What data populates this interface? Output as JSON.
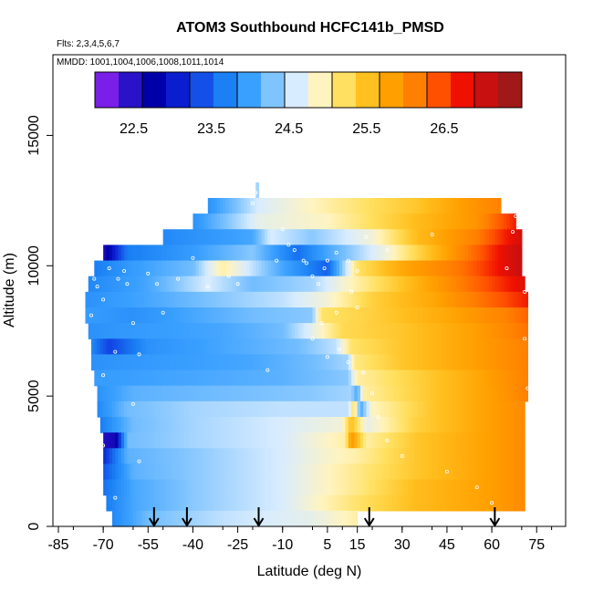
{
  "chart_data": {
    "type": "heatmap",
    "title": "ATOM3 Southbound HCFC141b_PMSD",
    "flights_label": "Flts: 2,3,4,5,6,7",
    "dates_label": "MMDD: 1001,1004,1006,1008,1011,1014",
    "xlabel": "Latitude (deg N)",
    "ylabel": "Altitude (m)",
    "xlim": [
      -85,
      85
    ],
    "ylim": [
      0,
      17500
    ],
    "x_ticks": [
      -85,
      -70,
      -55,
      -40,
      -25,
      -10,
      5,
      15,
      30,
      45,
      60,
      75
    ],
    "x_tick_labels": [
      "-85",
      "-70",
      "-55",
      "-40",
      "-25",
      "-10",
      "5",
      "15",
      "30",
      "45",
      "60",
      "75"
    ],
    "y_ticks": [
      0,
      5000,
      10000,
      15000
    ],
    "y_tick_labels": [
      "0",
      "5000",
      "10000",
      "15000"
    ],
    "colorbar": {
      "range": [
        22,
        27.5
      ],
      "tick_values": [
        22.5,
        23.5,
        24.5,
        25.5,
        26.5
      ],
      "tick_labels": [
        "22.5",
        "23.5",
        "24.5",
        "25.5",
        "26.5"
      ],
      "colors": [
        "#7a1fe8",
        "#2a12c8",
        "#0000a8",
        "#0a1ed0",
        "#1450e8",
        "#1a80f4",
        "#3aa0ff",
        "#80c4ff",
        "#d8ecff",
        "#fff4c0",
        "#ffe060",
        "#ffc020",
        "#ffa000",
        "#ff8000",
        "#ff5000",
        "#f01000",
        "#c81010",
        "#a01818"
      ]
    },
    "latitude_markers": [
      -53,
      -42,
      -18,
      19,
      61
    ],
    "altitude_bins": [
      {
        "alt": 12900,
        "lat_min": -19,
        "lat_max": -18,
        "start_lat": -19,
        "start_value": 24.3,
        "nodes": [
          [
            -18,
            24.5
          ]
        ]
      },
      {
        "alt": 12300,
        "lat_min": -35,
        "lat_max": 63,
        "start_lat": -35,
        "start_value": 23.8,
        "nodes": [
          [
            -18,
            24.6
          ],
          [
            5,
            25.0
          ],
          [
            35,
            25.5
          ],
          [
            50,
            25.9
          ],
          [
            63,
            26.2
          ]
        ]
      },
      {
        "alt": 11700,
        "lat_min": -40,
        "lat_max": 68,
        "start_lat": -40,
        "start_value": 23.8,
        "nodes": [
          [
            -18,
            24.7
          ],
          [
            5,
            24.9
          ],
          [
            35,
            25.6
          ],
          [
            55,
            26.0
          ],
          [
            65,
            26.6
          ],
          [
            68,
            26.8
          ]
        ]
      },
      {
        "alt": 11100,
        "lat_min": -50,
        "lat_max": 70,
        "start_lat": -50,
        "start_value": 23.7,
        "nodes": [
          [
            -20,
            24.0
          ],
          [
            -14,
            24.6
          ],
          [
            0,
            24.3
          ],
          [
            20,
            24.8
          ],
          [
            35,
            25.6
          ],
          [
            55,
            26.2
          ],
          [
            65,
            26.8
          ],
          [
            70,
            27.1
          ]
        ]
      },
      {
        "alt": 10500,
        "lat_min": -70,
        "lat_max": 70,
        "start_lat": -70,
        "start_value": 22.4,
        "nodes": [
          [
            -62,
            23.6
          ],
          [
            -40,
            23.9
          ],
          [
            -20,
            24.3
          ],
          [
            -5,
            23.5
          ],
          [
            5,
            24.0
          ],
          [
            25,
            24.8
          ],
          [
            40,
            25.6
          ],
          [
            55,
            26.4
          ],
          [
            65,
            27.0
          ],
          [
            70,
            27.2
          ]
        ]
      },
      {
        "alt": 9900,
        "lat_min": -73,
        "lat_max": 70,
        "start_lat": -73,
        "start_value": 23.6,
        "nodes": [
          [
            -60,
            23.9
          ],
          [
            -40,
            24.2
          ],
          [
            -30,
            25.0
          ],
          [
            -20,
            24.5
          ],
          [
            -10,
            24.0
          ],
          [
            5,
            23.4
          ],
          [
            15,
            25.2
          ],
          [
            30,
            25.8
          ],
          [
            50,
            26.3
          ],
          [
            70,
            27.2
          ]
        ]
      },
      {
        "alt": 9300,
        "lat_min": -75,
        "lat_max": 71,
        "start_lat": -75,
        "start_value": 23.7,
        "nodes": [
          [
            -55,
            24.0
          ],
          [
            -35,
            24.6
          ],
          [
            -20,
            24.2
          ],
          [
            0,
            24.4
          ],
          [
            15,
            25.0
          ],
          [
            35,
            25.7
          ],
          [
            55,
            26.4
          ],
          [
            71,
            27.0
          ]
        ]
      },
      {
        "alt": 8700,
        "lat_min": -76,
        "lat_max": 72,
        "start_lat": -76,
        "start_value": 23.8,
        "nodes": [
          [
            -55,
            24.0
          ],
          [
            -30,
            24.3
          ],
          [
            -10,
            24.5
          ],
          [
            5,
            24.8
          ],
          [
            20,
            25.4
          ],
          [
            40,
            25.8
          ],
          [
            60,
            26.4
          ],
          [
            72,
            26.8
          ]
        ]
      },
      {
        "alt": 8100,
        "lat_min": -76,
        "lat_max": 72,
        "start_lat": -76,
        "start_value": 23.9,
        "nodes": [
          [
            -60,
            23.8
          ],
          [
            -40,
            24.0
          ],
          [
            -20,
            24.2
          ],
          [
            0,
            24.3
          ],
          [
            3,
            25.2
          ],
          [
            20,
            25.4
          ],
          [
            45,
            25.8
          ],
          [
            65,
            26.2
          ],
          [
            72,
            26.4
          ]
        ]
      },
      {
        "alt": 7500,
        "lat_min": -75,
        "lat_max": 72,
        "start_lat": -75,
        "start_value": 23.8,
        "nodes": [
          [
            -55,
            23.9
          ],
          [
            -30,
            24.0
          ],
          [
            -10,
            24.2
          ],
          [
            0,
            24.7
          ],
          [
            10,
            25.3
          ],
          [
            30,
            25.5
          ],
          [
            55,
            25.9
          ],
          [
            72,
            26.3
          ]
        ]
      },
      {
        "alt": 6900,
        "lat_min": -74,
        "lat_max": 72,
        "start_lat": -74,
        "start_value": 23.7,
        "nodes": [
          [
            -68,
            23.2
          ],
          [
            -55,
            23.8
          ],
          [
            -30,
            24.0
          ],
          [
            -5,
            24.2
          ],
          [
            8,
            24.5
          ],
          [
            13,
            25.2
          ],
          [
            30,
            25.5
          ],
          [
            55,
            25.9
          ],
          [
            72,
            26.2
          ]
        ]
      },
      {
        "alt": 6300,
        "lat_min": -74,
        "lat_max": 72,
        "start_lat": -74,
        "start_value": 23.8,
        "nodes": [
          [
            -50,
            23.9
          ],
          [
            -20,
            24.0
          ],
          [
            0,
            24.2
          ],
          [
            12,
            24.4
          ],
          [
            14,
            25.1
          ],
          [
            30,
            25.5
          ],
          [
            55,
            25.9
          ],
          [
            72,
            26.2
          ]
        ]
      },
      {
        "alt": 5700,
        "lat_min": -73,
        "lat_max": 72,
        "start_lat": -73,
        "start_value": 23.9,
        "nodes": [
          [
            -40,
            24.0
          ],
          [
            -10,
            24.1
          ],
          [
            12,
            24.3
          ],
          [
            15,
            25.0
          ],
          [
            35,
            25.4
          ],
          [
            55,
            25.8
          ],
          [
            72,
            26.2
          ]
        ]
      },
      {
        "alt": 5100,
        "lat_min": -72,
        "lat_max": 72,
        "start_lat": -72,
        "start_value": 23.8,
        "nodes": [
          [
            -60,
            24.1
          ],
          [
            -30,
            24.2
          ],
          [
            0,
            24.3
          ],
          [
            13,
            24.4
          ],
          [
            15,
            24.0
          ],
          [
            17,
            25.0
          ],
          [
            40,
            25.5
          ],
          [
            60,
            25.9
          ],
          [
            72,
            26.2
          ]
        ]
      },
      {
        "alt": 4500,
        "lat_min": -72,
        "lat_max": 71,
        "start_lat": -72,
        "start_value": 23.7,
        "nodes": [
          [
            -62,
            24.2
          ],
          [
            -40,
            24.4
          ],
          [
            -10,
            24.5
          ],
          [
            12,
            24.5
          ],
          [
            14,
            25.3
          ],
          [
            16,
            24.0
          ],
          [
            20,
            24.9
          ],
          [
            40,
            25.5
          ],
          [
            60,
            25.9
          ],
          [
            71,
            26.1
          ]
        ]
      },
      {
        "alt": 3900,
        "lat_min": -71,
        "lat_max": 71,
        "start_lat": -71,
        "start_value": 23.6,
        "nodes": [
          [
            -60,
            24.2
          ],
          [
            -40,
            24.4
          ],
          [
            -10,
            24.6
          ],
          [
            10,
            24.8
          ],
          [
            13,
            25.6
          ],
          [
            18,
            24.7
          ],
          [
            35,
            25.4
          ],
          [
            60,
            25.9
          ],
          [
            71,
            26.1
          ]
        ]
      },
      {
        "alt": 3300,
        "lat_min": -70,
        "lat_max": 71,
        "start_lat": -70,
        "start_value": 22.4,
        "nodes": [
          [
            -66,
            22.5
          ],
          [
            -62,
            24.2
          ],
          [
            -40,
            24.4
          ],
          [
            -10,
            24.6
          ],
          [
            11,
            25.0
          ],
          [
            13,
            26.0
          ],
          [
            18,
            25.0
          ],
          [
            35,
            25.5
          ],
          [
            60,
            25.9
          ],
          [
            71,
            26.1
          ]
        ]
      },
      {
        "alt": 2700,
        "lat_min": -70,
        "lat_max": 71,
        "start_lat": -70,
        "start_value": 23.0,
        "nodes": [
          [
            -62,
            24.1
          ],
          [
            -40,
            24.3
          ],
          [
            -10,
            24.6
          ],
          [
            15,
            25.0
          ],
          [
            35,
            25.5
          ],
          [
            60,
            25.9
          ],
          [
            71,
            26.1
          ]
        ]
      },
      {
        "alt": 2100,
        "lat_min": -70,
        "lat_max": 71,
        "start_lat": -70,
        "start_value": 23.3,
        "nodes": [
          [
            -60,
            24.1
          ],
          [
            -40,
            24.3
          ],
          [
            -10,
            24.6
          ],
          [
            15,
            25.1
          ],
          [
            35,
            25.5
          ],
          [
            60,
            25.9
          ],
          [
            71,
            26.1
          ]
        ]
      },
      {
        "alt": 1500,
        "lat_min": -70,
        "lat_max": 71,
        "start_lat": -70,
        "start_value": 23.5,
        "nodes": [
          [
            -60,
            24.0
          ],
          [
            -40,
            24.3
          ],
          [
            -10,
            24.6
          ],
          [
            15,
            25.1
          ],
          [
            35,
            25.6
          ],
          [
            60,
            25.9
          ],
          [
            71,
            26.1
          ]
        ]
      },
      {
        "alt": 900,
        "lat_min": -69,
        "lat_max": 71,
        "start_lat": -69,
        "start_value": 23.6,
        "nodes": [
          [
            -60,
            24.0
          ],
          [
            -40,
            24.3
          ],
          [
            -10,
            24.6
          ],
          [
            15,
            25.2
          ],
          [
            35,
            25.6
          ],
          [
            60,
            25.9
          ],
          [
            71,
            26.1
          ]
        ]
      },
      {
        "alt": 300,
        "lat_min": -67,
        "lat_max": 15,
        "start_lat": -67,
        "start_value": 23.7,
        "nodes": [
          [
            -55,
            24.2
          ],
          [
            -30,
            24.5
          ],
          [
            0,
            24.7
          ],
          [
            15,
            25.0
          ]
        ]
      }
    ],
    "samples": [
      [
        -75,
        9800
      ],
      [
        -73,
        9500
      ],
      [
        -72,
        9200
      ],
      [
        -68,
        9900
      ],
      [
        -65,
        9500
      ],
      [
        -62,
        9300
      ],
      [
        -70,
        8700
      ],
      [
        -74,
        8100
      ],
      [
        -60,
        7800
      ],
      [
        -66,
        6700
      ],
      [
        -58,
        6600
      ],
      [
        -70,
        5800
      ],
      [
        -60,
        4700
      ],
      [
        -72,
        3700
      ],
      [
        -70,
        3100
      ],
      [
        -58,
        2500
      ],
      [
        -66,
        1100
      ],
      [
        -63,
        9800
      ],
      [
        -55,
        9700
      ],
      [
        -52,
        9300
      ],
      [
        -45,
        9500
      ],
      [
        -35,
        9200
      ],
      [
        -28,
        9600
      ],
      [
        -12,
        10200
      ],
      [
        -8,
        10800
      ],
      [
        -10,
        11400
      ],
      [
        -20,
        12400
      ],
      [
        -19,
        12800
      ],
      [
        -6,
        10600
      ],
      [
        -2,
        10100
      ],
      [
        0,
        9600
      ],
      [
        2,
        9300
      ],
      [
        4,
        9900
      ],
      [
        8,
        10500
      ],
      [
        12,
        10200
      ],
      [
        15,
        9800
      ],
      [
        13,
        9000
      ],
      [
        8,
        8200
      ],
      [
        3,
        7800
      ],
      [
        0,
        7200
      ],
      [
        5,
        6500
      ],
      [
        12,
        6300
      ],
      [
        17,
        5900
      ],
      [
        20,
        5100
      ],
      [
        22,
        4200
      ],
      [
        25,
        3300
      ],
      [
        30,
        2700
      ],
      [
        45,
        2100
      ],
      [
        55,
        1500
      ],
      [
        60,
        900
      ],
      [
        65,
        9900
      ],
      [
        67,
        11300
      ],
      [
        68,
        11900
      ],
      [
        70,
        12000
      ],
      [
        71,
        9000
      ],
      [
        71,
        7200
      ],
      [
        72,
        5300
      ],
      [
        40,
        11200
      ],
      [
        25,
        10600
      ],
      [
        18,
        11100
      ],
      [
        -25,
        9300
      ],
      [
        -40,
        10300
      ],
      [
        5,
        10200
      ],
      [
        9,
        6800
      ],
      [
        15,
        8400
      ],
      [
        -15,
        6000
      ],
      [
        -50,
        8200
      ],
      [
        -3,
        10200
      ]
    ]
  }
}
